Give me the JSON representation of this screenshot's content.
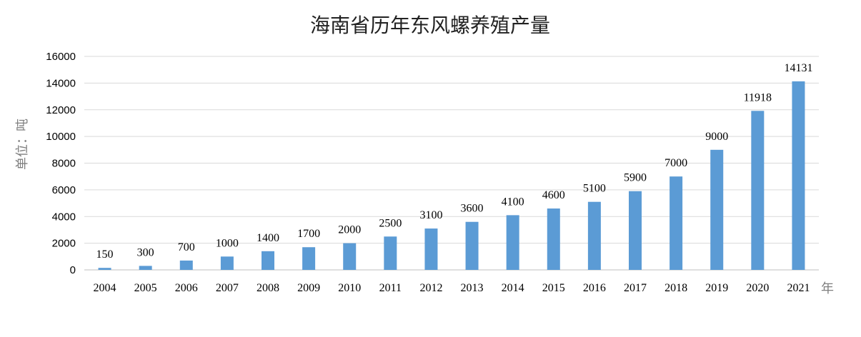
{
  "chart_data": {
    "type": "bar",
    "title": "海南省历年东风螺养殖产量",
    "ylabel": "单位：吨",
    "xunit": "年",
    "categories": [
      "2004",
      "2005",
      "2006",
      "2007",
      "2008",
      "2009",
      "2010",
      "2011",
      "2012",
      "2013",
      "2014",
      "2015",
      "2016",
      "2017",
      "2018",
      "2019",
      "2020",
      "2021"
    ],
    "values": [
      150,
      300,
      700,
      1000,
      1400,
      1700,
      2000,
      2500,
      3100,
      3600,
      4100,
      4600,
      5100,
      5900,
      7000,
      9000,
      11918,
      14131
    ],
    "ylim": [
      0,
      16000
    ],
    "yticks": [
      0,
      2000,
      4000,
      6000,
      8000,
      10000,
      12000,
      14000,
      16000
    ],
    "grid": true,
    "bar_color": "#5b9bd5"
  }
}
